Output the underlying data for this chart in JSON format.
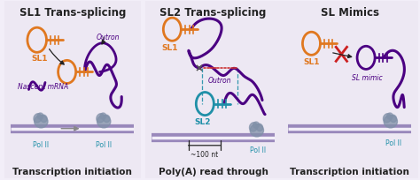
{
  "bg_color": "#f2eef8",
  "panel_bg": "#ede8f3",
  "border_color": "#c0aed8",
  "purple": "#4B0082",
  "orange": "#E07820",
  "teal": "#2090A8",
  "gray_pol": "#8090A8",
  "dna_color": "#9988BB",
  "dna_white": "#f2eef8",
  "red": "#CC2020",
  "black": "#222222",
  "titles": [
    "SL1 Trans-splicing",
    "SL2 Trans-splicing",
    "SL Mimics"
  ],
  "captions": [
    "Transcription initiation",
    "Poly(A) read through",
    "Transcription initiation"
  ],
  "title_fs": 8.5,
  "caption_fs": 7.5,
  "label_fs": 6.5,
  "small_fs": 5.5
}
